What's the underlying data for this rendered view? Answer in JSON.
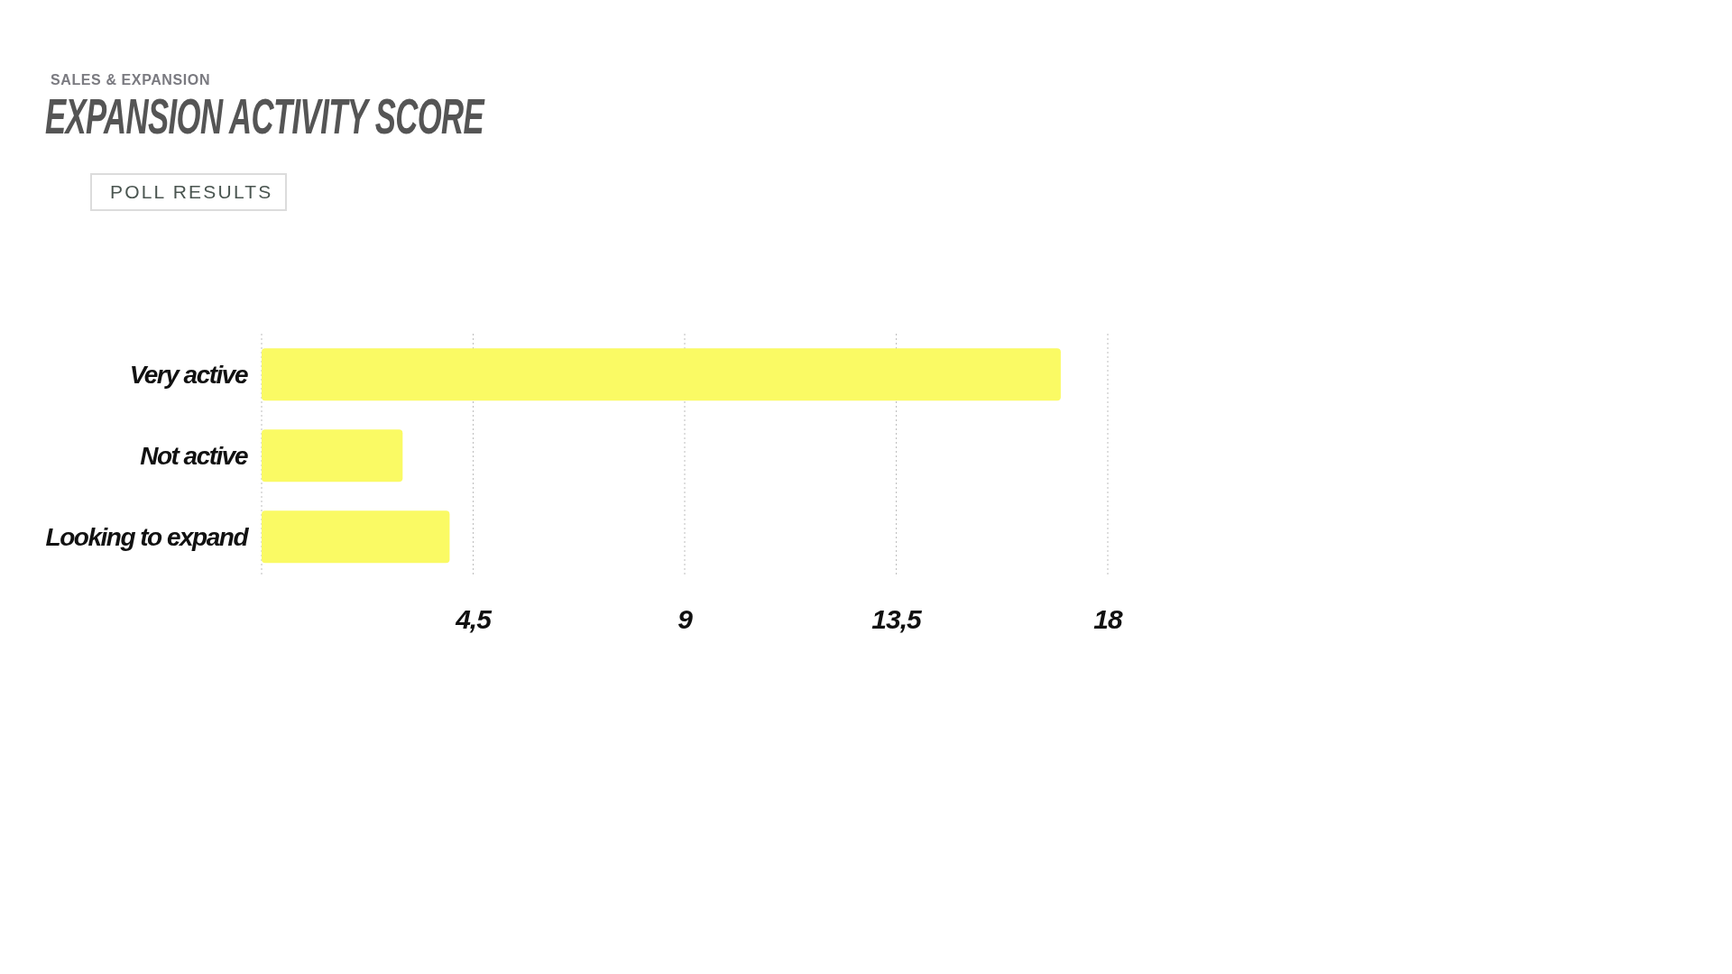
{
  "chart_data": {
    "type": "bar",
    "orientation": "horizontal",
    "subtitle": "SALES & EXPANSION",
    "title": "EXPANSION ACTIVITY SCORE",
    "annotations": [
      "POLL RESULTS"
    ],
    "categories": [
      "Very active",
      "Not active",
      "Looking to expand"
    ],
    "values": [
      17,
      3,
      4
    ],
    "color": "#fafa64",
    "xlim": [
      0,
      18
    ],
    "xticks": [
      {
        "value": 0,
        "label": null
      },
      {
        "value": 4.5,
        "label": "4,5"
      },
      9,
      {
        "value": 13.5,
        "label": "13,5"
      },
      18
    ],
    "grid": "x"
  }
}
